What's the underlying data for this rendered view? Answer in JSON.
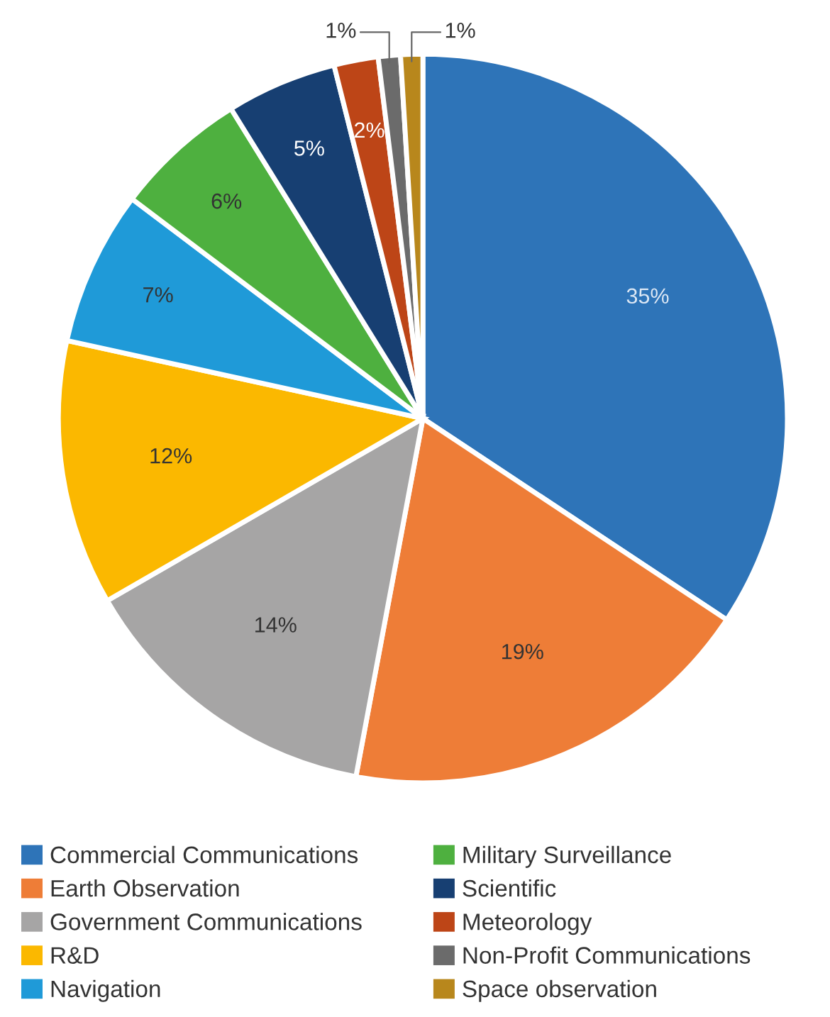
{
  "chart_data": {
    "type": "pie",
    "categories": [
      "Commercial Communications",
      "Earth Observation",
      "Government Communications",
      "R&D",
      "Navigation",
      "Military Surveillance",
      "Scientific",
      "Meteorology",
      "Non-Profit Communications",
      "Space observation"
    ],
    "values": [
      35,
      19,
      14,
      12,
      7,
      6,
      5,
      2,
      1,
      1
    ],
    "colors": [
      "#2e74b8",
      "#ee7d37",
      "#a6a5a5",
      "#fbb800",
      "#1f9ad8",
      "#4eb03f",
      "#173f72",
      "#bd4517",
      "#6b6b6b",
      "#b8871c"
    ],
    "value_labels": [
      "35%",
      "19%",
      "14%",
      "12%",
      "7%",
      "6%",
      "5%",
      "2%",
      "1%",
      "1%"
    ],
    "legend": "bottom"
  }
}
